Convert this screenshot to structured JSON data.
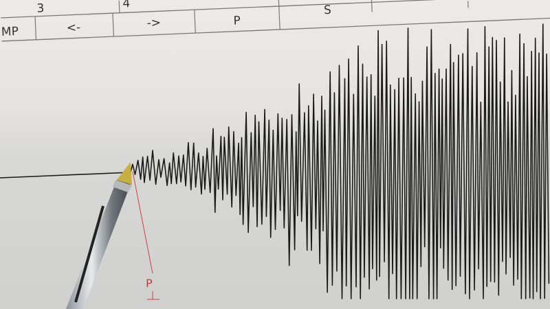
{
  "chart_header": {
    "row1": [
      "3",
      "4",
      "",
      "S",
      ""
    ],
    "row2": [
      "MP",
      "<-",
      "->",
      "P"
    ]
  },
  "annotation": {
    "p_wave_label": "P"
  },
  "colors": {
    "paper": "#e6e6e4",
    "trace": "#1a1a1a",
    "marker": "#d04040",
    "pen_tip": "#c8b040"
  }
}
